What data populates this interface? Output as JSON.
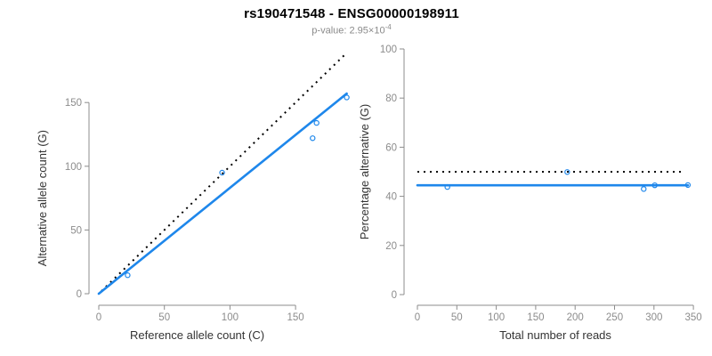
{
  "header": {
    "title": "rs190471548 - ENSG00000198911",
    "subtitle_base": "p-value: 2.95×10",
    "subtitle_exponent": "-4"
  },
  "colors": {
    "accent_blue": "#1e87eb",
    "identity_line_black": "#000000",
    "axis_gray": "#8c8c8c",
    "tick_label_gray": "#8c8c8c",
    "axis_title_dark": "#333333",
    "title_black": "#000000",
    "subtitle_gray": "#8a8a8a",
    "background": "#ffffff"
  },
  "chart_data": [
    {
      "type": "scatter",
      "name": "allele-counts",
      "xlabel": "Reference allele count (C)",
      "ylabel": "Alternative allele count (G)",
      "xlim": [
        0,
        193
      ],
      "ylim": [
        0,
        192
      ],
      "x_ticks": [
        0,
        50,
        100,
        150
      ],
      "y_ticks": [
        0,
        50,
        100,
        150
      ],
      "grid": false,
      "legend": false,
      "points": [
        [
          22,
          14.5
        ],
        [
          94,
          95
        ],
        [
          163,
          122
        ],
        [
          166,
          134
        ],
        [
          189,
          154
        ]
      ],
      "lines": [
        {
          "name": "identity-line",
          "style": "dotted",
          "x0": 2,
          "y0": 2,
          "x1": 189,
          "y1": 189
        },
        {
          "name": "fit-line",
          "style": "solid",
          "x0": 0,
          "y0": 0,
          "x1": 189,
          "y1": 157
        }
      ]
    },
    {
      "type": "scatter",
      "name": "percentage-alternative",
      "xlabel": "Total number of reads",
      "ylabel": "Percentage alternative (G)",
      "xlim": [
        0,
        350
      ],
      "ylim": [
        0,
        100
      ],
      "x_ticks": [
        0,
        50,
        100,
        150,
        200,
        250,
        300,
        350
      ],
      "y_ticks": [
        0,
        20,
        40,
        60,
        80,
        100
      ],
      "grid": false,
      "legend": false,
      "points": [
        [
          38,
          43.8
        ],
        [
          190,
          49.9
        ],
        [
          287,
          43
        ],
        [
          301,
          44.5
        ],
        [
          343,
          44.6
        ]
      ],
      "lines": [
        {
          "name": "expected-50pct-line",
          "style": "dotted",
          "x0": 0,
          "y0": 50,
          "x1": 337,
          "y1": 50
        },
        {
          "name": "fit-line",
          "style": "solid",
          "x0": 0,
          "y0": 44.5,
          "x1": 343,
          "y1": 44.5
        }
      ]
    }
  ]
}
